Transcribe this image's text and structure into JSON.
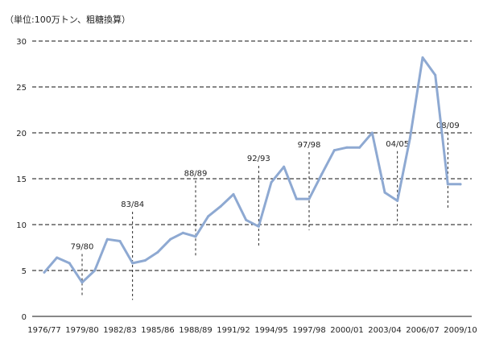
{
  "chart_data": {
    "type": "line",
    "unit_label": "（単位:100万トン、粗糖換算）",
    "x": [
      "1976/77",
      "1977/78",
      "1978/79",
      "1979/80",
      "1980/81",
      "1981/82",
      "1982/83",
      "1983/84",
      "1984/85",
      "1985/86",
      "1986/87",
      "1987/88",
      "1988/89",
      "1989/90",
      "1990/91",
      "1991/92",
      "1992/93",
      "1993/94",
      "1994/95",
      "1995/96",
      "1996/97",
      "1997/98",
      "1998/99",
      "1999/00",
      "2000/01",
      "2001/02",
      "2002/03",
      "2003/04",
      "2004/05",
      "2005/06",
      "2006/07",
      "2007/08",
      "2008/09",
      "2009/10"
    ],
    "x_tick_labels": [
      "1976/77",
      "1979/80",
      "1982/83",
      "1985/86",
      "1988/89",
      "1991/92",
      "1994/95",
      "1997/98",
      "2000/01",
      "2003/04",
      "2006/07",
      "2009/10"
    ],
    "series": [
      {
        "values": [
          4.8,
          6.4,
          5.8,
          3.7,
          5.0,
          8.4,
          8.2,
          5.8,
          6.1,
          7.0,
          8.4,
          9.1,
          8.7,
          10.9,
          12.0,
          13.3,
          10.5,
          9.8,
          14.6,
          16.3,
          12.8,
          12.8,
          15.5,
          18.1,
          18.4,
          18.4,
          20.0,
          13.5,
          12.6,
          19.4,
          28.2,
          26.3,
          14.4,
          14.4
        ],
        "color": "#8ea9d2"
      }
    ],
    "ylim": [
      0,
      30
    ],
    "yticks": [
      0,
      5,
      10,
      15,
      20,
      25,
      30
    ],
    "grid": "horizontal-dashed",
    "annotations": [
      {
        "label": "79/80",
        "x_index": 3,
        "y_top": 6.8,
        "y_bottom": 2.1
      },
      {
        "label": "83/84",
        "x_index": 7,
        "y_top": 11.4,
        "y_bottom": 1.8
      },
      {
        "label": "88/89",
        "x_index": 12,
        "y_top": 14.8,
        "y_bottom": 6.4
      },
      {
        "label": "92/93",
        "x_index": 17,
        "y_top": 16.4,
        "y_bottom": 7.5
      },
      {
        "label": "97/98",
        "x_index": 21,
        "y_top": 17.9,
        "y_bottom": 9.4
      },
      {
        "label": "04/05",
        "x_index": 28,
        "y_top": 18.0,
        "y_bottom": 10.0
      },
      {
        "label": "08/09",
        "x_index": 32,
        "y_top": 20.0,
        "y_bottom": 11.8
      }
    ]
  }
}
